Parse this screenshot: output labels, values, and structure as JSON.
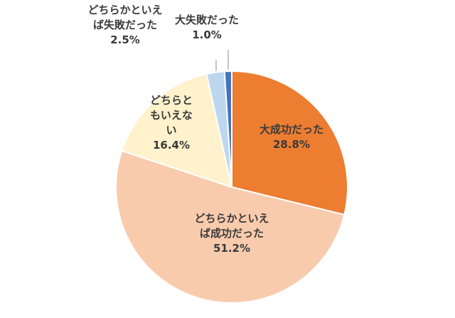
{
  "chart_data": {
    "type": "pie",
    "start_angle_deg": 0,
    "direction": "clockwise",
    "slices": [
      {
        "lines": [
          "大成功だった"
        ],
        "percent_label": "28.8%",
        "value": 28.8,
        "color": "#ED7D31"
      },
      {
        "lines": [
          "どちらかといえ",
          "ば成功だった"
        ],
        "percent_label": "51.2%",
        "value": 51.2,
        "color": "#F8CBAD"
      },
      {
        "lines": [
          "どちらと",
          "もいえな",
          "い"
        ],
        "percent_label": "16.4%",
        "value": 16.4,
        "color": "#FFF2CC"
      },
      {
        "lines": [
          "どちらかといえ",
          "ば失敗だった"
        ],
        "percent_label": "2.5%",
        "value": 2.5,
        "color": "#BDD7EE"
      },
      {
        "lines": [
          "大失敗だった"
        ],
        "percent_label": "1.0%",
        "value": 1.0,
        "color": "#4472C4"
      }
    ]
  }
}
